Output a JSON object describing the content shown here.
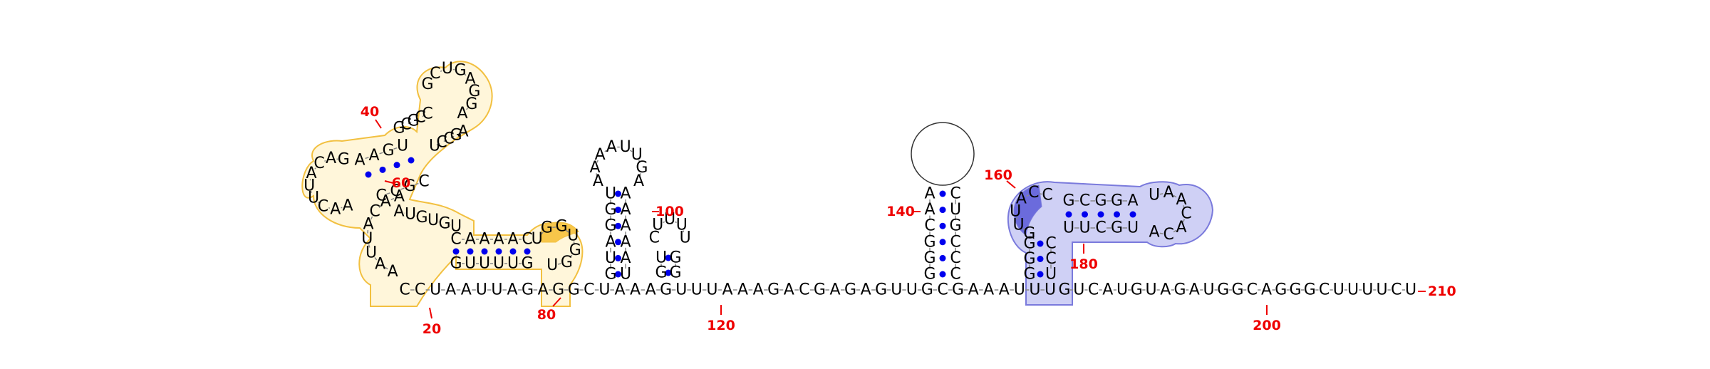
{
  "colors": {
    "pair_dot": "#0000ee",
    "number_label": "#ee0000",
    "yellow_outline": "#f2c040",
    "yellow_fill": "#fff6da",
    "yellow_highlight": "#f7c64a",
    "blue_outline": "#7a7adc",
    "blue_fill": "#cfd0f5",
    "blue_highlight": "#6b6bdc",
    "backbone": "#888888"
  },
  "position_labels": [
    "20",
    "40",
    "60",
    "80",
    "100",
    "120",
    "140",
    "160",
    "180",
    "200",
    "210"
  ],
  "regions": {
    "hairpin_96": {
      "stem_5p": [
        "G",
        "U",
        "A",
        "G",
        "G",
        "U"
      ],
      "stem_3p": [
        "U",
        "A",
        "A",
        "A",
        "A",
        "A"
      ],
      "loop": [
        "A",
        "A",
        "A",
        "A",
        "U",
        "U",
        "G",
        "A"
      ]
    },
    "hairpin_108": {
      "stem_5p": [
        "G",
        "U"
      ],
      "stem_3p": [
        "G",
        "G"
      ],
      "loop": [
        "C",
        "U",
        "U",
        "U",
        "U"
      ]
    },
    "hairpin_145": {
      "stem_5p": [
        "G",
        "G",
        "G",
        "C",
        "A",
        "A"
      ],
      "stem_3p": [
        "C",
        "U",
        "G",
        "C",
        "C",
        "C"
      ]
    },
    "hairpin_160": {
      "stem_5p": [
        "G",
        "G",
        "G"
      ],
      "stem_3p": [
        "C",
        "C",
        "U"
      ],
      "loop_5p": [
        "G",
        "U",
        "U",
        "A",
        "C",
        "C"
      ],
      "inner_5p": [
        "G",
        "C",
        "G",
        "G",
        "A"
      ],
      "inner_loop": [
        "U",
        "A",
        "A",
        "C",
        "A",
        "C",
        "A"
      ],
      "inner_3p": [
        "U",
        "U",
        "C",
        "G",
        "U"
      ]
    },
    "multiloop_1": {
      "stem_5p": [
        "C",
        "A",
        "A",
        "A",
        "A",
        "C"
      ],
      "stem_3p": [
        "G",
        "U",
        "U",
        "U",
        "U",
        "G"
      ],
      "loop": [
        "U",
        "G",
        "G",
        "U",
        "G",
        "G",
        "U"
      ],
      "outer_5p": [
        "A",
        "A",
        "U",
        "U",
        "A",
        "C",
        "A",
        "A"
      ],
      "upper_5p": [
        "A",
        "U",
        "G",
        "U",
        "G",
        "U"
      ],
      "helix_5p": [
        "A",
        "A",
        "C",
        "U",
        "U",
        "A",
        "C",
        "A",
        "G",
        "A",
        "A",
        "G",
        "U"
      ],
      "helix_3p": [
        "C",
        "C",
        "G",
        "C",
        "G",
        "C",
        "U",
        "G",
        "A",
        "G",
        "G",
        "A",
        "A"
      ],
      "helix_a_5p": [
        "G",
        "C",
        "G",
        "C",
        "C"
      ],
      "helix_a_3p": [
        "U",
        "C",
        "C",
        "G",
        "A"
      ]
    },
    "tail": [
      "G",
      "U",
      "C",
      "A",
      "U",
      "G",
      "U",
      "A",
      "G",
      "A",
      "U",
      "G",
      "G",
      "C",
      "A",
      "G",
      "G",
      "G",
      "C",
      "U",
      "U",
      "U",
      "U",
      "C",
      "U"
    ]
  },
  "baseline_sequence": [
    "C",
    "C",
    "U",
    "A",
    "A",
    "U",
    "U",
    "A",
    "G",
    "A",
    "G",
    "G",
    "C",
    "U",
    "A",
    "A",
    "A",
    "G",
    "U",
    "U",
    "U",
    "A",
    "A",
    "A",
    "G",
    "A",
    "C",
    "G",
    "A",
    "G",
    "A",
    "G",
    "U",
    "U",
    "G",
    "C",
    "G",
    "A",
    "A",
    "A",
    "U",
    "U",
    "U"
  ]
}
